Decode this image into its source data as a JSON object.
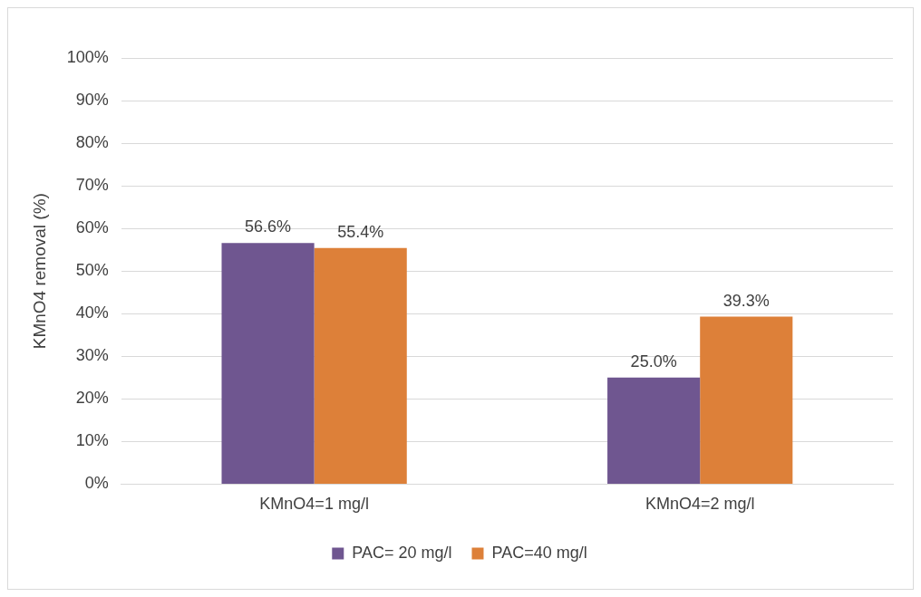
{
  "chart_data": {
    "type": "bar",
    "ylabel": "KMnO4 removal (%)",
    "categories": [
      "KMnO4=1 mg/l",
      "KMnO4=2 mg/l"
    ],
    "series": [
      {
        "name": "PAC= 20 mg/l",
        "color": "#6f5690",
        "values": [
          56.6,
          25.0
        ],
        "value_labels": [
          "56.6%",
          "25.0%"
        ]
      },
      {
        "name": "PAC=40 mg/l",
        "color": "#dd8039",
        "values": [
          55.4,
          39.3
        ],
        "value_labels": [
          "55.4%",
          "39.3%"
        ]
      }
    ],
    "ylim": [
      0,
      100
    ],
    "yticks": [
      {
        "value": 0,
        "label": "0%"
      },
      {
        "value": 10,
        "label": "10%"
      },
      {
        "value": 20,
        "label": "20%"
      },
      {
        "value": 30,
        "label": "30%"
      },
      {
        "value": 40,
        "label": "40%"
      },
      {
        "value": 50,
        "label": "50%"
      },
      {
        "value": 60,
        "label": "60%"
      },
      {
        "value": 70,
        "label": "70%"
      },
      {
        "value": 80,
        "label": "80%"
      },
      {
        "value": 90,
        "label": "90%"
      },
      {
        "value": 100,
        "label": "100%"
      }
    ],
    "grid": "y",
    "legend": "bottom"
  }
}
